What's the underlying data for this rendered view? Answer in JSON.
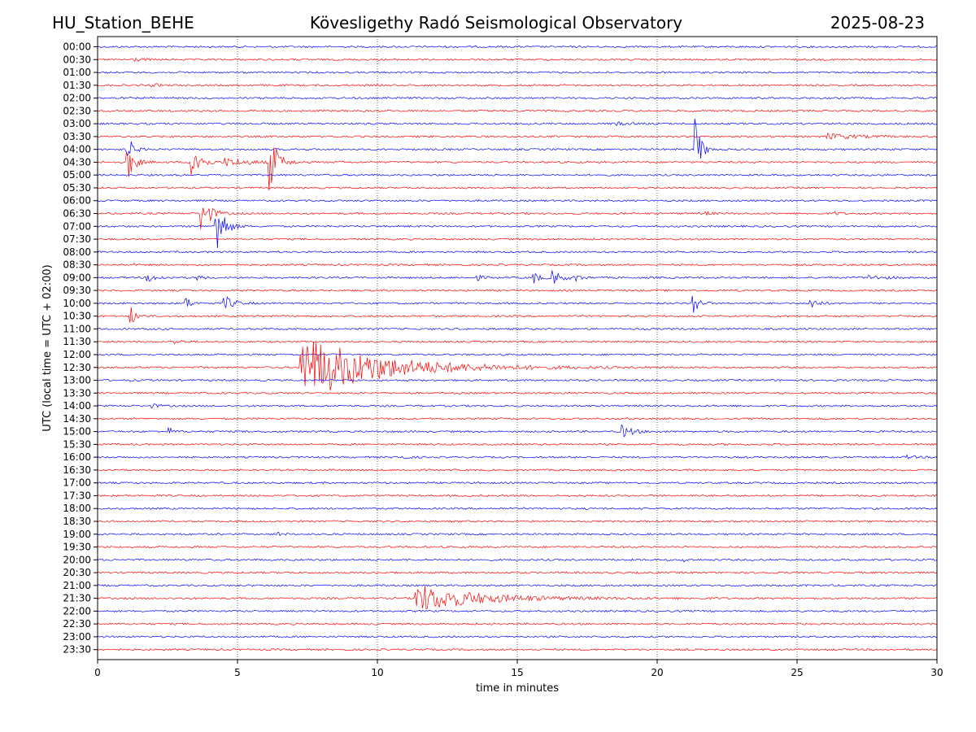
{
  "header": {
    "station": "HU_Station_BEHE",
    "title": "Kövesligethy Radó Seismological Observatory",
    "date": "2025-08-23"
  },
  "chart_data": {
    "type": "line",
    "xlabel": "time in minutes",
    "ylabel": "UTC (local time = UTC + 02:00)",
    "xlim": [
      0,
      30
    ],
    "x_ticks": [
      0,
      5,
      10,
      15,
      20,
      25,
      30
    ],
    "grid": "vertical dotted at x ticks",
    "colors": {
      "even_hour_rows": "#0000ff",
      "half_hour_rows": "#ff0000"
    },
    "rows": [
      "00:00",
      "00:30",
      "01:00",
      "01:30",
      "02:00",
      "02:30",
      "03:00",
      "03:30",
      "04:00",
      "04:30",
      "05:00",
      "05:30",
      "06:00",
      "06:30",
      "07:00",
      "07:30",
      "08:00",
      "08:30",
      "09:00",
      "09:30",
      "10:00",
      "10:30",
      "11:00",
      "11:30",
      "12:00",
      "12:30",
      "13:00",
      "13:30",
      "14:00",
      "14:30",
      "15:00",
      "15:30",
      "16:00",
      "16:30",
      "17:00",
      "17:30",
      "18:00",
      "18:30",
      "19:00",
      "19:30",
      "20:00",
      "20:30",
      "21:00",
      "21:30",
      "22:00",
      "22:30",
      "23:00",
      "23:30"
    ],
    "events": [
      {
        "row": "00:30",
        "t": 1.3,
        "amp": 0.12,
        "dur": 0.8
      },
      {
        "row": "01:30",
        "t": 2.0,
        "amp": 0.1,
        "dur": 0.6
      },
      {
        "row": "03:00",
        "t": 18.5,
        "amp": 0.12,
        "dur": 0.8
      },
      {
        "row": "03:30",
        "t": 26.1,
        "amp": 0.22,
        "dur": 2.2
      },
      {
        "row": "04:00",
        "t": 1.1,
        "amp": 1.0,
        "dur": 0.35
      },
      {
        "row": "04:00",
        "t": 21.4,
        "amp": 2.4,
        "dur": 0.35
      },
      {
        "row": "04:30",
        "t": 1.1,
        "amp": 1.3,
        "dur": 0.45
      },
      {
        "row": "04:30",
        "t": 3.4,
        "amp": 1.9,
        "dur": 0.5
      },
      {
        "row": "04:30",
        "t": 4.6,
        "amp": 0.3,
        "dur": 1.8
      },
      {
        "row": "04:30",
        "t": 6.2,
        "amp": 2.2,
        "dur": 0.5
      },
      {
        "row": "06:30",
        "t": 3.75,
        "amp": 1.4,
        "dur": 0.6
      },
      {
        "row": "06:30",
        "t": 21.8,
        "amp": 0.1,
        "dur": 0.5
      },
      {
        "row": "06:30",
        "t": 26.4,
        "amp": 0.1,
        "dur": 0.5
      },
      {
        "row": "07:00",
        "t": 4.25,
        "amp": 2.8,
        "dur": 0.5
      },
      {
        "row": "09:00",
        "t": 1.8,
        "amp": 0.3,
        "dur": 0.7
      },
      {
        "row": "09:00",
        "t": 3.6,
        "amp": 0.2,
        "dur": 0.3
      },
      {
        "row": "09:00",
        "t": 13.6,
        "amp": 0.18,
        "dur": 0.4
      },
      {
        "row": "09:00",
        "t": 15.6,
        "amp": 0.45,
        "dur": 0.4
      },
      {
        "row": "09:00",
        "t": 16.3,
        "amp": 0.5,
        "dur": 0.7
      },
      {
        "row": "09:00",
        "t": 17.1,
        "amp": 0.2,
        "dur": 0.4
      },
      {
        "row": "09:00",
        "t": 27.6,
        "amp": 0.18,
        "dur": 1.0
      },
      {
        "row": "10:00",
        "t": 3.2,
        "amp": 0.45,
        "dur": 0.3
      },
      {
        "row": "10:00",
        "t": 4.55,
        "amp": 0.6,
        "dur": 0.6
      },
      {
        "row": "10:00",
        "t": 21.3,
        "amp": 1.0,
        "dur": 0.35
      },
      {
        "row": "10:00",
        "t": 25.5,
        "amp": 0.5,
        "dur": 0.45
      },
      {
        "row": "10:30",
        "t": 1.2,
        "amp": 0.7,
        "dur": 0.35
      },
      {
        "row": "11:30",
        "t": 2.8,
        "amp": 0.2,
        "dur": 0.4
      },
      {
        "row": "12:30",
        "t": 7.3,
        "amp": 2.6,
        "dur": 5.5
      },
      {
        "row": "14:00",
        "t": 2.0,
        "amp": 0.12,
        "dur": 0.5
      },
      {
        "row": "15:00",
        "t": 2.6,
        "amp": 0.25,
        "dur": 0.3
      },
      {
        "row": "15:00",
        "t": 18.8,
        "amp": 0.45,
        "dur": 0.7
      },
      {
        "row": "16:00",
        "t": 10.7,
        "amp": 0.18,
        "dur": 0.6
      },
      {
        "row": "16:00",
        "t": 29.0,
        "amp": 0.12,
        "dur": 0.5
      },
      {
        "row": "19:00",
        "t": 6.5,
        "amp": 0.12,
        "dur": 0.3
      },
      {
        "row": "20:00",
        "t": 21.0,
        "amp": 0.12,
        "dur": 0.3
      },
      {
        "row": "21:30",
        "t": 11.4,
        "amp": 1.1,
        "dur": 4.5
      }
    ]
  }
}
